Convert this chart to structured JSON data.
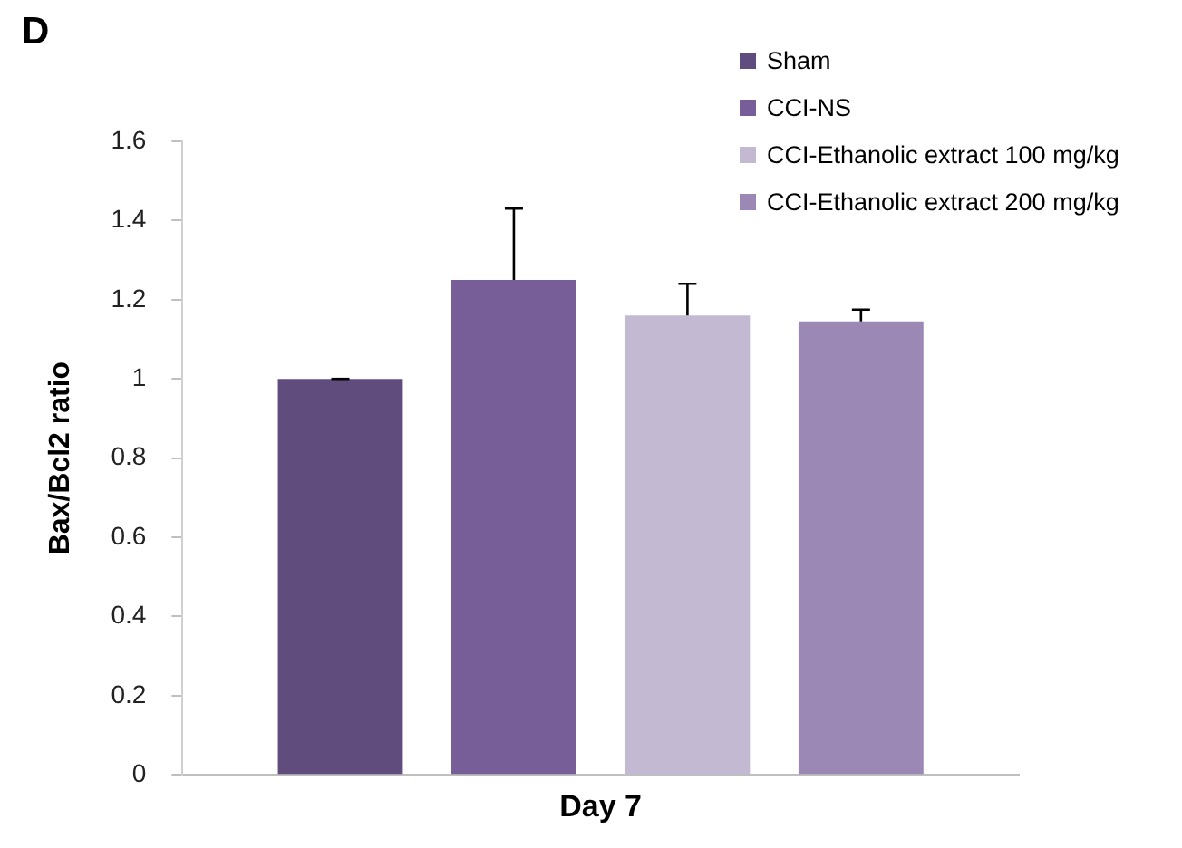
{
  "chart_data": {
    "type": "bar",
    "ylabel": "Bax/Bcl2 ratio",
    "categories": [
      "Day 7"
    ],
    "series": [
      {
        "name": "Sham",
        "color": "#614c7e",
        "values": [
          1.0
        ],
        "errors": [
          [
            1.0,
            1.0
          ]
        ]
      },
      {
        "name": "CCI-NS",
        "color": "#775e98",
        "values": [
          1.25
        ],
        "errors": [
          [
            1.25,
            1.43
          ]
        ]
      },
      {
        "name": "CCI-Ethanolic extract 100 mg/kg",
        "color": "#c3b9d3",
        "values": [
          1.16
        ],
        "errors": [
          [
            1.16,
            1.24
          ]
        ]
      },
      {
        "name": "CCI-Ethanolic extract 200 mg/kg",
        "color": "#9b88b5",
        "values": [
          1.145
        ],
        "errors": [
          [
            1.145,
            1.175
          ]
        ]
      }
    ],
    "ylim": [
      0,
      1.6
    ],
    "yticks": [
      0,
      0.2,
      0.4,
      0.6,
      0.8,
      1,
      1.2,
      1.4,
      1.6
    ],
    "grid": false,
    "legend": "top right",
    "annotations": [
      "D"
    ]
  }
}
